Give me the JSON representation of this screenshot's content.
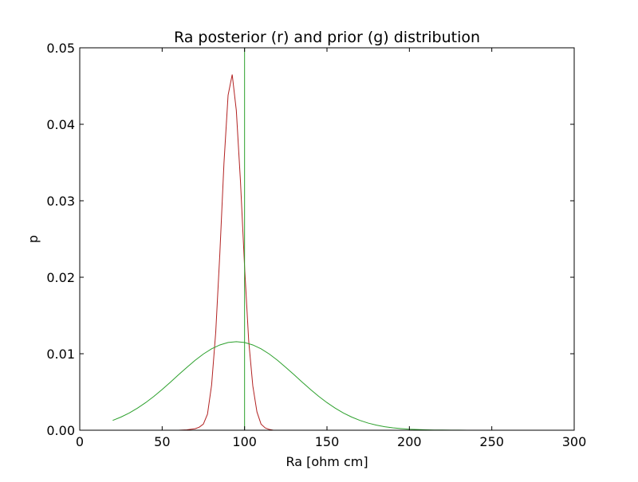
{
  "chart_data": {
    "type": "line",
    "title": "Ra posterior (r) and prior (g) distribution",
    "xlabel": "Ra [ohm cm]",
    "ylabel": "p",
    "xlim": [
      0,
      300
    ],
    "ylim": [
      0,
      0.05
    ],
    "x_ticks": [
      "0",
      "50",
      "100",
      "150",
      "200",
      "250",
      "300"
    ],
    "y_ticks": [
      "0.00",
      "0.01",
      "0.02",
      "0.03",
      "0.04",
      "0.05"
    ],
    "grid": false,
    "legend": "none",
    "vertical_line": {
      "x": 100,
      "color": "#2ca02c"
    },
    "series": [
      {
        "color": "#b22222",
        "x": [
          20,
          60,
          65,
          70,
          72.5,
          75,
          77.5,
          80,
          82.5,
          85,
          87.5,
          90,
          92.5,
          95,
          97.5,
          100,
          102.5,
          105,
          107.5,
          110,
          112.5,
          115,
          117.5,
          120,
          122.5,
          125,
          127.5,
          130,
          135,
          140,
          300
        ],
        "y": [
          0,
          0,
          5e-05,
          0.0002,
          0.0004,
          0.0008,
          0.0021,
          0.0059,
          0.0128,
          0.0231,
          0.0349,
          0.0438,
          0.0465,
          0.0418,
          0.0326,
          0.0214,
          0.0117,
          0.0058,
          0.0024,
          0.0008,
          0.0003,
          0.0001,
          0,
          0,
          0,
          0,
          0,
          0,
          0,
          0,
          0
        ]
      },
      {
        "color": "#2ca02c",
        "x": [
          20,
          25,
          30,
          35,
          40,
          45,
          50,
          55,
          60,
          65,
          70,
          75,
          80,
          85,
          90,
          95,
          100,
          105,
          110,
          115,
          120,
          125,
          130,
          135,
          140,
          145,
          150,
          155,
          160,
          165,
          170,
          175,
          180,
          185,
          190,
          195,
          200,
          205,
          210,
          215,
          220,
          225,
          230,
          235,
          240,
          245,
          250,
          255,
          260,
          265,
          270,
          275,
          280,
          285,
          290,
          295,
          300
        ],
        "y": [
          0.00128,
          0.00172,
          0.00225,
          0.00288,
          0.00361,
          0.00443,
          0.00533,
          0.00628,
          0.00726,
          0.00822,
          0.00914,
          0.00996,
          0.01064,
          0.01115,
          0.01147,
          0.01158,
          0.01147,
          0.01115,
          0.01064,
          0.00996,
          0.00914,
          0.00822,
          0.00726,
          0.00628,
          0.00533,
          0.00443,
          0.00361,
          0.00288,
          0.00225,
          0.00172,
          0.00128,
          0.00093,
          0.00066,
          0.00046,
          0.00031,
          0.00021,
          0.00013,
          9e-05,
          5e-05,
          3e-05,
          2e-05,
          1e-05,
          1e-05,
          0,
          0,
          0,
          0,
          0,
          0,
          0,
          0,
          0,
          0,
          0,
          0,
          0,
          0
        ]
      }
    ]
  }
}
